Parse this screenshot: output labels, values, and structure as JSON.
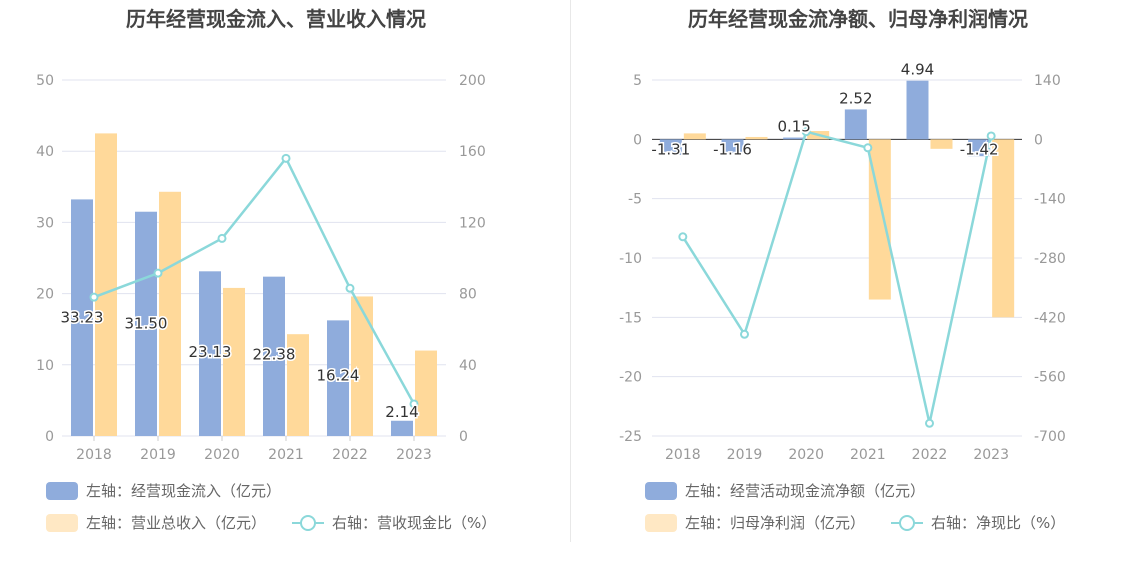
{
  "colors": {
    "bar_primary": "#8facdc",
    "bar_secondary": "#ffd99a",
    "line": "#8bd8da",
    "axis_text": "#999999",
    "title_text": "#444444",
    "grid": "#e0e3ef"
  },
  "chart_data": [
    {
      "type": "bar",
      "title": "历年经营现金流入、营业收入情况",
      "categories": [
        "2018",
        "2019",
        "2020",
        "2021",
        "2022",
        "2023"
      ],
      "ylim": [
        0,
        50
      ],
      "y_ticks": [
        "0",
        "10",
        "20",
        "30",
        "40",
        "50"
      ],
      "y2lim": [
        0,
        200
      ],
      "y2_ticks": [
        "0",
        "40",
        "80",
        "120",
        "160",
        "200"
      ],
      "grid": true,
      "series": [
        {
          "name": "左轴：经营现金流入（亿元）",
          "type": "bar",
          "axis": "left",
          "values": [
            33.23,
            31.5,
            23.13,
            22.38,
            16.24,
            2.14
          ],
          "labels": [
            "33.23",
            "31.50",
            "23.13",
            "22.38",
            "16.24",
            "2.14"
          ]
        },
        {
          "name": "左轴：营业总收入（亿元）",
          "type": "bar",
          "axis": "left",
          "values": [
            42.5,
            34.3,
            20.8,
            14.3,
            19.6,
            12.0
          ]
        },
        {
          "name": "右轴：营收现金比（%）",
          "type": "line",
          "axis": "right",
          "values": [
            78,
            91.5,
            111,
            156,
            83,
            18
          ]
        }
      ]
    },
    {
      "type": "bar",
      "title": "历年经营现金流净额、归母净利润情况",
      "categories": [
        "2018",
        "2019",
        "2020",
        "2021",
        "2022",
        "2023"
      ],
      "ylim": [
        -25,
        5
      ],
      "y_ticks": [
        "5",
        "0",
        "-5",
        "-10",
        "-15",
        "-20",
        "-25"
      ],
      "y2lim": [
        -700,
        140
      ],
      "y2_ticks": [
        "140",
        "0",
        "-140",
        "-280",
        "-420",
        "-560",
        "-700"
      ],
      "grid": true,
      "series": [
        {
          "name": "左轴：经营活动现金流净额（亿元）",
          "type": "bar",
          "axis": "left",
          "values": [
            -1.31,
            -1.16,
            0.15,
            2.52,
            4.94,
            -1.42
          ],
          "labels": [
            "-1.31",
            "-1.16",
            "0.15",
            "2.52",
            "4.94",
            "-1.42"
          ]
        },
        {
          "name": "左轴：归母净利润（亿元）",
          "type": "bar",
          "axis": "left",
          "values": [
            0.5,
            0.2,
            0.7,
            -13.5,
            -0.8,
            -15.0
          ]
        },
        {
          "name": "右轴：净现比（%）",
          "type": "line",
          "axis": "right",
          "values": [
            -230,
            -460,
            18,
            -20,
            -670,
            8
          ]
        }
      ]
    }
  ]
}
